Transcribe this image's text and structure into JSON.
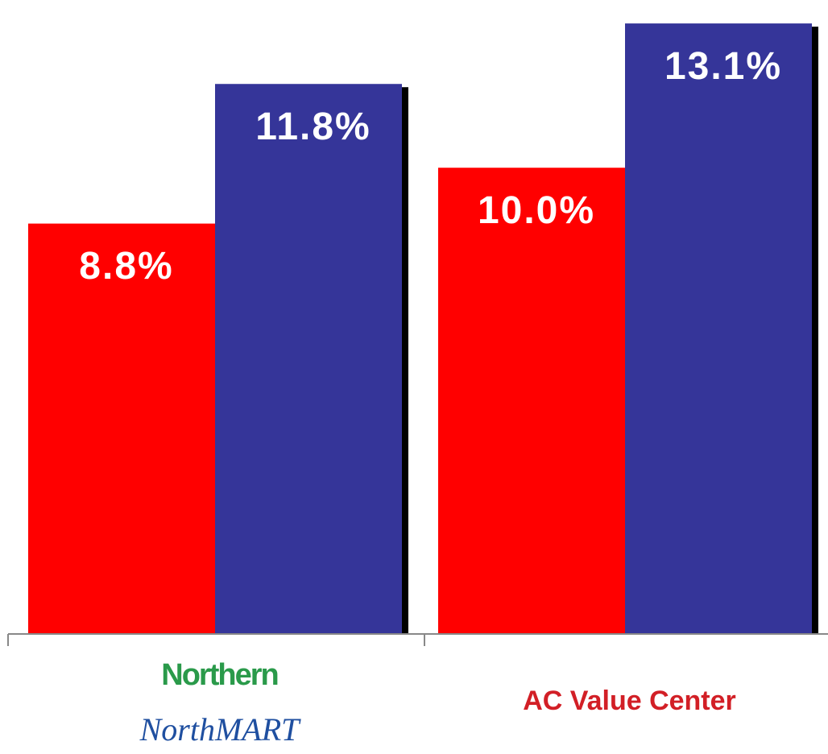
{
  "chart_data": {
    "type": "bar",
    "categories": [
      [
        "Northern",
        "NorthMART"
      ],
      [
        "AC Value Center"
      ]
    ],
    "series": [
      {
        "color": "#ff0000",
        "values": [
          8.8,
          10.0
        ],
        "value_labels": [
          "8.8%",
          "10.0%"
        ]
      },
      {
        "color": "#353599",
        "values": [
          11.8,
          13.1
        ],
        "value_labels": [
          "11.8%",
          "13.1%"
        ]
      }
    ],
    "ylim": [
      0,
      13.5
    ]
  }
}
